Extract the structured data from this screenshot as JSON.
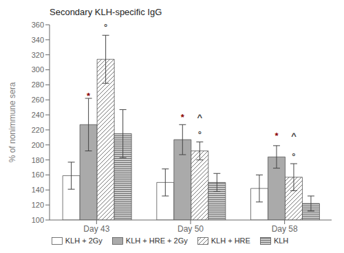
{
  "chart_data": {
    "type": "bar",
    "title": "Secondary KLH-specific IgG",
    "ylabel": "% of nonimmune sera",
    "categories": [
      "Day 43",
      "Day 50",
      "Day 58"
    ],
    "series": [
      {
        "name": "KLH + 2Gy",
        "color": "#ffffff",
        "values": [
          159,
          150,
          142
        ],
        "errors": [
          18,
          18,
          18
        ]
      },
      {
        "name": "KLH + HRE + 2Gy",
        "color": "#aaaaaa",
        "values": [
          227,
          207,
          184
        ],
        "errors": [
          35,
          20,
          15
        ]
      },
      {
        "name": "KLH + HRE",
        "color": "#ffffff",
        "values": [
          314,
          192,
          157
        ],
        "errors": [
          32,
          12,
          18
        ]
      },
      {
        "name": "KLH",
        "color": "#cccccc",
        "values": [
          215,
          150,
          122
        ],
        "errors": [
          32,
          12,
          10
        ]
      }
    ],
    "ylim": [
      100,
      360
    ],
    "yticks": [
      100,
      120,
      140,
      160,
      180,
      200,
      220,
      240,
      260,
      280,
      300,
      320,
      340,
      360
    ],
    "grid": false,
    "legend": "bottom",
    "annotations": [
      {
        "text": "*",
        "category": "Day 43",
        "series": "KLH + HRE + 2Gy",
        "y": 258,
        "color": "#8B0000"
      },
      {
        "text": "°",
        "category": "Day 43",
        "series": "KLH + HRE",
        "y": 350,
        "color": "#444444"
      },
      {
        "text": "*",
        "category": "Day 50",
        "series": "KLH + HRE + 2Gy",
        "y": 230,
        "color": "#8B0000"
      },
      {
        "text": "^",
        "category": "Day 50",
        "series": "KLH + HRE",
        "y": 230,
        "color": "#444444"
      },
      {
        "text": "°",
        "category": "Day 50",
        "series": "KLH + HRE",
        "y": 207,
        "color": "#444444"
      },
      {
        "text": "*",
        "category": "Day 58",
        "series": "KLH + HRE + 2Gy",
        "y": 205,
        "color": "#8B0000"
      },
      {
        "text": "^",
        "category": "Day 58",
        "series": "KLH + HRE",
        "y": 205,
        "color": "#444444"
      },
      {
        "text": "°",
        "category": "Day 58",
        "series": "KLH + HRE",
        "y": 178,
        "color": "#444444"
      }
    ]
  }
}
